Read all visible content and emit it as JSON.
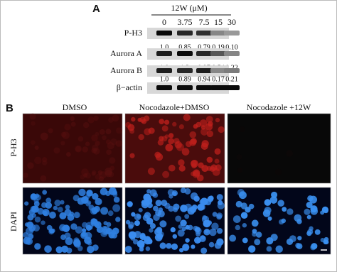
{
  "panel_a": {
    "label": "A",
    "treatment": "12W (μM)",
    "concentrations": [
      "0",
      "3.75",
      "7.5",
      "15",
      "30"
    ],
    "blots": [
      {
        "name": "P-H3",
        "ratios": [
          "1.0",
          "0.85",
          "0.79",
          "0.19",
          "0.10"
        ]
      },
      {
        "name": "Aurora A",
        "ratios": [
          "1.0",
          "1.3",
          "0.97",
          "0.54",
          "0.22"
        ]
      },
      {
        "name": "Aurora B",
        "ratios": [
          "1.0",
          "0.89",
          "0.94",
          "0.17",
          "0.21"
        ]
      },
      {
        "name": "β−actin"
      }
    ]
  },
  "panel_b": {
    "label": "B",
    "columns": [
      "DMSO",
      "Nocodazole+DMSO",
      "Nocodazole +12W"
    ],
    "rows": [
      "P-H3",
      "DAPI"
    ]
  }
}
